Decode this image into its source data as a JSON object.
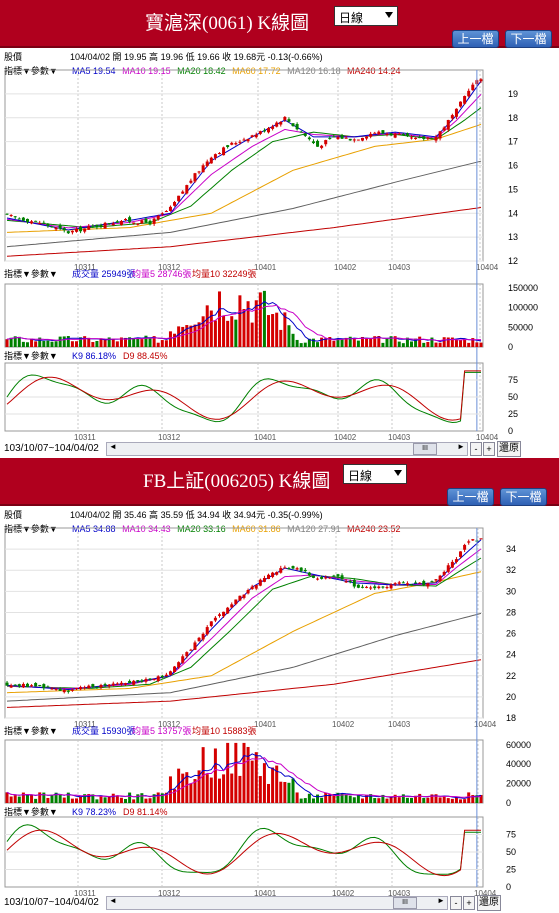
{
  "common": {
    "period_select": "日線",
    "prev_button": "上一檔",
    "next_button": "下一檔",
    "stock_label": "股價",
    "indicator_label": "指標",
    "param_label": "參數",
    "back_button": "還原",
    "scroll_mid": "III",
    "scroll_left": "◄",
    "scroll_right": "►",
    "colors": {
      "up": "#d40000",
      "down": "#008000",
      "ma5": "#0000c8",
      "ma10": "#c800c8",
      "ma20": "#008000",
      "ma60": "#e8a000",
      "ma120": "#606060",
      "ma240": "#c00000",
      "k": "#008000",
      "d": "#c00000"
    }
  },
  "charts": [
    {
      "title": "寶滬深(0061) K線圖",
      "quote": "104/04/02 開 19.95 高 19.96 低 19.66 收 19.68元 -0.13(-0.66%)",
      "ma": [
        {
          "label": "MA5 19.54",
          "color": "#0000c8"
        },
        {
          "label": "MA10 19.15",
          "color": "#c800c8"
        },
        {
          "label": "MA20 18.42",
          "color": "#008000"
        },
        {
          "label": "MA60 17.72",
          "color": "#e8a000"
        },
        {
          "label": "MA120 16.18",
          "color": "#808080"
        },
        {
          "label": "MA240 14.24",
          "color": "#c00000"
        }
      ],
      "vol_legend": [
        {
          "label": "成交量 25949張",
          "color": "#0000c8"
        },
        {
          "label": "均量5 28746張",
          "color": "#c800c8"
        },
        {
          "label": "均量10 32249張",
          "color": "#c00000"
        }
      ],
      "kd_legend": [
        {
          "label": "K9 86.18%",
          "color": "#0000c8"
        },
        {
          "label": "D9 88.45%",
          "color": "#c00000"
        }
      ],
      "range": "103/10/07~104/04/02",
      "price_ticks": [
        "19",
        "18",
        "17",
        "16",
        "15",
        "14",
        "13",
        "12"
      ],
      "vol_ticks": [
        "150000",
        "100000",
        "50000",
        "0"
      ],
      "kd_ticks": [
        "75",
        "50",
        "25",
        "0"
      ],
      "months": [
        "10311",
        "10312",
        "10401",
        "10402",
        "10403",
        "10404"
      ]
    },
    {
      "title": "FB上証(006205) K線圖",
      "quote": "104/04/02 開 35.46 高 35.59 低 34.94 收 34.94元 -0.35(-0.99%)",
      "ma": [
        {
          "label": "MA5 34.88",
          "color": "#0000c8"
        },
        {
          "label": "MA10 34.43",
          "color": "#c800c8"
        },
        {
          "label": "MA20 33.16",
          "color": "#008000"
        },
        {
          "label": "MA60 31.86",
          "color": "#e8a000"
        },
        {
          "label": "MA120 27.91",
          "color": "#808080"
        },
        {
          "label": "MA240 23.52",
          "color": "#c00000"
        }
      ],
      "vol_legend": [
        {
          "label": "成交量 15930張",
          "color": "#0000c8"
        },
        {
          "label": "均量5 13757張",
          "color": "#c800c8"
        },
        {
          "label": "均量10 15883張",
          "color": "#c00000"
        }
      ],
      "kd_legend": [
        {
          "label": "K9 78.23%",
          "color": "#0000c8"
        },
        {
          "label": "D9 81.14%",
          "color": "#c00000"
        }
      ],
      "range": "103/10/07~104/04/02",
      "price_ticks": [
        "34",
        "32",
        "30",
        "28",
        "26",
        "24",
        "22",
        "20",
        "18"
      ],
      "vol_ticks": [
        "60000",
        "40000",
        "20000",
        "0"
      ],
      "kd_ticks": [
        "75",
        "50",
        "25",
        "0"
      ],
      "months": [
        "10311",
        "10312",
        "10401",
        "10402",
        "10403",
        "10404"
      ]
    }
  ],
  "chart_data": [
    {
      "type": "candlestick",
      "title": "寶滬深(0061) K線圖",
      "x_range": [
        "103/10/07",
        "104/04/02"
      ],
      "ylim": [
        12,
        20
      ],
      "close_path": [
        [
          0,
          13.9
        ],
        [
          8,
          13.6
        ],
        [
          15,
          13.2
        ],
        [
          20,
          13.4
        ],
        [
          28,
          13.7
        ],
        [
          35,
          13.6
        ],
        [
          40,
          14.2
        ],
        [
          45,
          15.4
        ],
        [
          50,
          16.4
        ],
        [
          55,
          16.9
        ],
        [
          62,
          17.4
        ],
        [
          68,
          18.0
        ],
        [
          72,
          17.4
        ],
        [
          76,
          16.8
        ],
        [
          80,
          17.2
        ],
        [
          85,
          17.1
        ],
        [
          90,
          17.4
        ],
        [
          95,
          17.3
        ],
        [
          100,
          17.1
        ],
        [
          105,
          17.2
        ],
        [
          110,
          18.3
        ],
        [
          113,
          19.2
        ],
        [
          116,
          19.68
        ]
      ],
      "ma_paths": {
        "MA5": [
          [
            0,
            13.8
          ],
          [
            15,
            13.3
          ],
          [
            30,
            13.7
          ],
          [
            40,
            14.0
          ],
          [
            50,
            16.2
          ],
          [
            60,
            17.2
          ],
          [
            68,
            17.9
          ],
          [
            75,
            17.2
          ],
          [
            85,
            17.2
          ],
          [
            95,
            17.4
          ],
          [
            105,
            17.2
          ],
          [
            110,
            18.1
          ],
          [
            116,
            19.54
          ]
        ],
        "MA20": [
          [
            0,
            13.7
          ],
          [
            20,
            13.4
          ],
          [
            35,
            13.6
          ],
          [
            45,
            14.3
          ],
          [
            55,
            15.8
          ],
          [
            65,
            17.0
          ],
          [
            75,
            17.4
          ],
          [
            85,
            17.2
          ],
          [
            95,
            17.3
          ],
          [
            105,
            17.1
          ],
          [
            112,
            17.9
          ],
          [
            116,
            18.42
          ]
        ],
        "MA60": [
          [
            0,
            13.2
          ],
          [
            30,
            13.4
          ],
          [
            50,
            14.0
          ],
          [
            70,
            15.8
          ],
          [
            90,
            16.8
          ],
          [
            105,
            17.1
          ],
          [
            116,
            17.72
          ]
        ],
        "MA120": [
          [
            0,
            12.6
          ],
          [
            40,
            13.2
          ],
          [
            70,
            14.2
          ],
          [
            95,
            15.3
          ],
          [
            116,
            16.18
          ]
        ],
        "MA240": [
          [
            0,
            12.2
          ],
          [
            40,
            12.6
          ],
          [
            80,
            13.4
          ],
          [
            116,
            14.24
          ]
        ]
      },
      "volume": {
        "ylim": [
          0,
          160000
        ],
        "last": 25949,
        "ma5": 28746,
        "ma10": 32249,
        "peak": 160000
      },
      "kd": {
        "ylim": [
          0,
          100
        ],
        "K": 86.18,
        "D": 88.45
      }
    },
    {
      "type": "candlestick",
      "title": "FB上証(006205) K線圖",
      "x_range": [
        "103/10/07",
        "104/04/02"
      ],
      "ylim": [
        18,
        36
      ],
      "close_path": [
        [
          0,
          21.2
        ],
        [
          8,
          21.0
        ],
        [
          15,
          20.6
        ],
        [
          20,
          20.9
        ],
        [
          28,
          21.4
        ],
        [
          35,
          21.6
        ],
        [
          40,
          22.3
        ],
        [
          45,
          24.6
        ],
        [
          50,
          27.0
        ],
        [
          55,
          28.8
        ],
        [
          62,
          31.0
        ],
        [
          68,
          32.4
        ],
        [
          72,
          32.0
        ],
        [
          76,
          31.2
        ],
        [
          80,
          31.5
        ],
        [
          85,
          30.6
        ],
        [
          90,
          30.2
        ],
        [
          95,
          30.8
        ],
        [
          100,
          30.6
        ],
        [
          105,
          31.0
        ],
        [
          110,
          33.2
        ],
        [
          113,
          34.8
        ],
        [
          116,
          34.94
        ]
      ],
      "ma_paths": {
        "MA5": [
          [
            0,
            21.1
          ],
          [
            15,
            20.7
          ],
          [
            30,
            21.3
          ],
          [
            40,
            22.0
          ],
          [
            50,
            26.4
          ],
          [
            60,
            30.4
          ],
          [
            68,
            32.2
          ],
          [
            75,
            31.6
          ],
          [
            85,
            30.8
          ],
          [
            95,
            30.6
          ],
          [
            105,
            30.8
          ],
          [
            110,
            32.8
          ],
          [
            116,
            34.88
          ]
        ],
        "MA20": [
          [
            0,
            21.0
          ],
          [
            20,
            20.8
          ],
          [
            35,
            21.2
          ],
          [
            45,
            22.8
          ],
          [
            55,
            26.4
          ],
          [
            65,
            30.2
          ],
          [
            75,
            31.5
          ],
          [
            85,
            31.2
          ],
          [
            95,
            30.6
          ],
          [
            105,
            30.5
          ],
          [
            112,
            32.2
          ],
          [
            116,
            33.16
          ]
        ],
        "MA60": [
          [
            0,
            20.4
          ],
          [
            30,
            20.8
          ],
          [
            50,
            22.0
          ],
          [
            70,
            26.2
          ],
          [
            90,
            29.8
          ],
          [
            105,
            30.9
          ],
          [
            116,
            31.86
          ]
        ],
        "MA120": [
          [
            0,
            19.6
          ],
          [
            40,
            20.4
          ],
          [
            70,
            22.8
          ],
          [
            95,
            25.8
          ],
          [
            116,
            27.91
          ]
        ],
        "MA240": [
          [
            0,
            19.0
          ],
          [
            40,
            19.6
          ],
          [
            80,
            21.2
          ],
          [
            116,
            23.52
          ]
        ]
      },
      "volume": {
        "ylim": [
          0,
          65000
        ],
        "last": 15930,
        "ma5": 13757,
        "ma10": 15883,
        "peak": 62000
      },
      "kd": {
        "ylim": [
          0,
          100
        ],
        "K": 78.23,
        "D": 81.14
      }
    }
  ]
}
